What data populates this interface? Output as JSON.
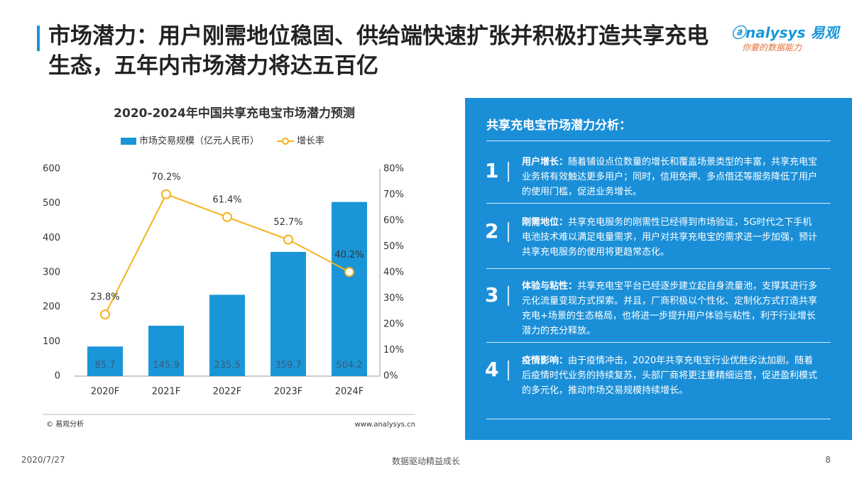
{
  "header": {
    "title": "市场潜力：用户刚需地位稳固、供给端快速扩张并积极打造共享充电生态，五年内市场潜力将达五百亿",
    "logo_name": "nalysys",
    "logo_cn": "易观",
    "logo_slogan": "你要的数据能力"
  },
  "chart_data": {
    "type": "bar",
    "title": "2020-2024年中国共享充电宝市场潜力预测",
    "categories": [
      "2020F",
      "2021F",
      "2022F",
      "2023F",
      "2024F"
    ],
    "series": [
      {
        "name": "市场交易规模（亿元人民币）",
        "type": "bar",
        "color": "#1a96d8",
        "values": [
          85.7,
          145.9,
          235.5,
          359.7,
          504.2
        ]
      },
      {
        "name": "增长率",
        "type": "line",
        "axis": "y2",
        "color": "#f5b21c",
        "values": [
          23.8,
          70.2,
          61.4,
          52.7,
          40.2
        ],
        "value_labels": [
          "23.8%",
          "70.2%",
          "61.4%",
          "52.7%",
          "40.2%"
        ]
      }
    ],
    "ylim": [
      0,
      600
    ],
    "yticks": [
      0,
      100,
      200,
      300,
      400,
      500,
      600
    ],
    "y2lim": [
      0,
      80
    ],
    "y2ticks": [
      {
        "value": 0,
        "label": "0%"
      },
      {
        "value": 10,
        "label": "10%"
      },
      {
        "value": 20,
        "label": "20%"
      },
      {
        "value": 30,
        "label": "30%"
      },
      {
        "value": 40,
        "label": "40%"
      },
      {
        "value": 50,
        "label": "50%"
      },
      {
        "value": 60,
        "label": "60%"
      },
      {
        "value": 70,
        "label": "70%"
      },
      {
        "value": 80,
        "label": "80%"
      }
    ],
    "source": "© 易观分析",
    "website": "www.analysys.cn"
  },
  "panel": {
    "title": "共享充电宝市场潜力分析：",
    "items": [
      {
        "number": "1",
        "heading": "用户增长：",
        "text": "随着铺设点位数量的增长和覆盖场景类型的丰富，共享充电宝业务将有效触达更多用户；同时，信用免押、多点借还等服务降低了用户的使用门槛，促进业务增长。"
      },
      {
        "number": "2",
        "heading": "刚需地位：",
        "text": "共享充电服务的刚需性已经得到市场验证，5G时代之下手机电池技术难以满足电量需求，用户对共享充电宝的需求进一步加强，预计共享充电服务的使用将更趋常态化。"
      },
      {
        "number": "3",
        "heading": "体验与粘性：",
        "text": "共享充电宝平台已经逐步建立起自身流量池，支撑其进行多元化流量变现方式探索。并且，厂商积极以个性化、定制化方式打造共享充电+场景的生态格局，也将进一步提升用户体验与粘性，利于行业增长潜力的充分释放。"
      },
      {
        "number": "4",
        "heading": "疫情影响：",
        "text": "由于疫情冲击，2020年共享充电宝行业优胜劣汰加剧。随着后疫情时代业务的持续复苏，头部厂商将更注重精细运营，促进盈利模式的多元化，推动市场交易规模持续增长。"
      }
    ]
  },
  "footer": {
    "date": "2020/7/27",
    "slogan": "数据驱动精益成长",
    "page": "8"
  }
}
